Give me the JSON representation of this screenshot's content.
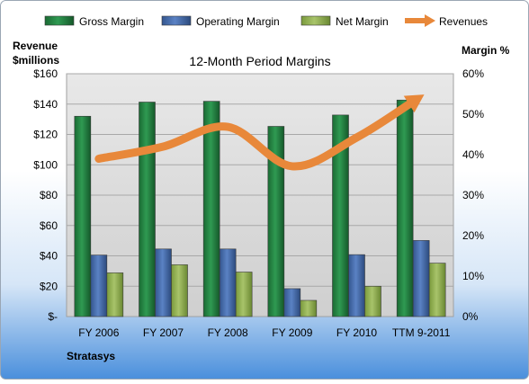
{
  "chart_data": {
    "type": "bar",
    "title": "12-Month Period Margins",
    "company": "Stratasys",
    "left_axis_title_line1": "Revenue",
    "left_axis_title_line2": "$millions",
    "right_axis_title": "Margin %",
    "categories": [
      "FY 2006",
      "FY 2007",
      "FY 2008",
      "FY 2009",
      "FY 2010",
      "TTM 9-2011"
    ],
    "left_axis": {
      "min": 0,
      "max": 160,
      "step": 20,
      "tick_labels": [
        "$-",
        "$20",
        "$40",
        "$60",
        "$80",
        "$100",
        "$120",
        "$140",
        "$160"
      ]
    },
    "right_axis": {
      "min": 0,
      "max": 60,
      "step": 10,
      "tick_labels": [
        "0%",
        "10%",
        "20%",
        "30%",
        "40%",
        "50%",
        "60%"
      ]
    },
    "series": [
      {
        "name": "Gross Margin",
        "axis": "right",
        "type": "bar",
        "color": "#1e7a3c",
        "values": [
          49.5,
          53,
          53.2,
          47,
          49.8,
          53.5
        ]
      },
      {
        "name": "Operating Margin",
        "axis": "right",
        "type": "bar",
        "color": "#3f65a8",
        "values": [
          15.2,
          16.7,
          16.7,
          6.9,
          15.3,
          18.8
        ]
      },
      {
        "name": "Net Margin",
        "axis": "right",
        "type": "bar",
        "color": "#8dac4a",
        "values": [
          10.8,
          12.8,
          11,
          4,
          7.5,
          13.2
        ]
      },
      {
        "name": "Revenues",
        "axis": "left",
        "type": "line",
        "color": "#e8883a",
        "values": [
          104,
          112,
          125,
          99,
          118,
          145
        ]
      }
    ],
    "legend_position": "top",
    "grid": true
  }
}
